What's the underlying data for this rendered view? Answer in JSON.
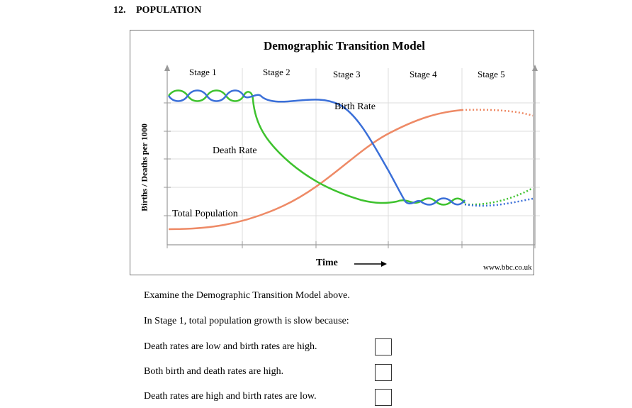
{
  "question": {
    "number": "12.",
    "title": "POPULATION"
  },
  "chart_data": {
    "type": "line",
    "title": "Demographic Transition Model",
    "xlabel": "Time",
    "ylabel": "Births / Deaths per 1000",
    "stages": [
      "Stage 1",
      "Stage 2",
      "Stage 3",
      "Stage 4",
      "Stage 5"
    ],
    "series_labels": {
      "birth_rate": "Birth Rate",
      "death_rate": "Death Rate",
      "total_population": "Total Population"
    },
    "colors": {
      "birth_rate": "#3a6fd8",
      "death_rate": "#3ec22e",
      "total_population": "#ee8a66",
      "grid": "#dddddd",
      "axis": "#999999"
    },
    "grid": true,
    "source": "www.bbc.co.uk"
  },
  "instructions": {
    "examine": "Examine the Demographic Transition Model above.",
    "prompt": "In Stage 1, total population growth is slow because:"
  },
  "options": [
    {
      "label": "Death rates are low and birth rates are high."
    },
    {
      "label": "Both birth and death rates are high."
    },
    {
      "label": "Death rates are high and birth rates are low."
    }
  ]
}
